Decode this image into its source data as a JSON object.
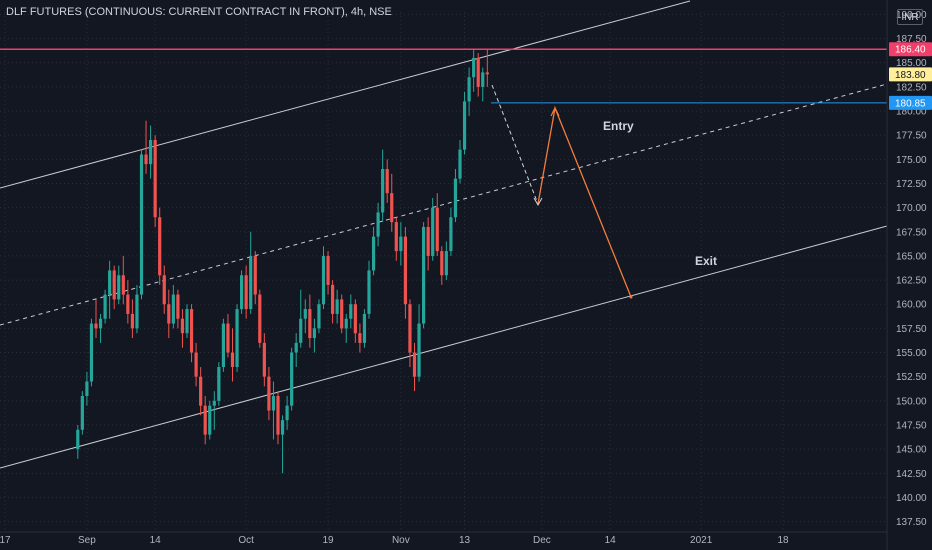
{
  "title": "DLF FUTURES (CONTINUOUS: CURRENT CONTRACT IN FRONT), 4h, NSE",
  "currency": "INR",
  "colors": {
    "background": "#131722",
    "grid": "#2a2e39",
    "axis_text": "#b2b5be",
    "up": "#26a69a",
    "down": "#ef5350",
    "channel": "#c9ccd4",
    "resistance": "#f23e6b",
    "entry_line": "#2196f3",
    "projection": "#f57c3b"
  },
  "annotations": {
    "entry": "Entry",
    "exit": "Exit"
  },
  "chart_data": {
    "type": "candlestick",
    "y_ticks": [
      "137.50",
      "140.00",
      "142.50",
      "145.00",
      "147.50",
      "150.00",
      "152.50",
      "155.00",
      "157.50",
      "160.00",
      "162.50",
      "165.00",
      "167.50",
      "170.00",
      "172.50",
      "175.00",
      "177.50",
      "180.00",
      "182.50",
      "185.00",
      "187.50",
      "190.00"
    ],
    "x_ticks": [
      {
        "label": "17",
        "bar": 0
      },
      {
        "label": "Sep",
        "bar": 18
      },
      {
        "label": "14",
        "bar": 33
      },
      {
        "label": "Oct",
        "bar": 53
      },
      {
        "label": "19",
        "bar": 71
      },
      {
        "label": "Nov",
        "bar": 87
      },
      {
        "label": "13",
        "bar": 101
      },
      {
        "label": "Dec",
        "bar": 118
      },
      {
        "label": "14",
        "bar": 133
      },
      {
        "label": "2021",
        "bar": 153
      },
      {
        "label": "18",
        "bar": 171
      }
    ],
    "ylim": [
      137.5,
      191
    ],
    "bar_count": 185,
    "price_labels": [
      {
        "value": 186.4,
        "label": "186.40",
        "style": "resistance"
      },
      {
        "value": 183.8,
        "label": "183.80",
        "style": "last"
      },
      {
        "value": 180.85,
        "label": "180.85",
        "style": "entry"
      }
    ],
    "candles": [
      [
        145.0,
        147.5,
        144.0,
        147.0
      ],
      [
        147.0,
        151.0,
        146.5,
        150.5
      ],
      [
        150.5,
        153.0,
        149.5,
        152.0
      ],
      [
        152.0,
        158.5,
        151.5,
        158.0
      ],
      [
        158.0,
        160.5,
        156.5,
        157.5
      ],
      [
        157.5,
        159.0,
        156.0,
        158.5
      ],
      [
        158.5,
        161.5,
        158.0,
        161.0
      ],
      [
        161.0,
        164.5,
        158.5,
        163.5
      ],
      [
        163.5,
        164.0,
        159.5,
        160.5
      ],
      [
        160.5,
        164.0,
        160.0,
        163.0
      ],
      [
        163.0,
        165.0,
        160.0,
        161.0
      ],
      [
        161.0,
        162.5,
        158.0,
        159.0
      ],
      [
        159.0,
        160.5,
        156.5,
        157.5
      ],
      [
        157.5,
        162.0,
        157.0,
        161.0
      ],
      [
        161.0,
        176.0,
        160.5,
        175.5
      ],
      [
        175.5,
        179.0,
        173.5,
        174.5
      ],
      [
        174.5,
        178.5,
        173.0,
        177.0
      ],
      [
        177.0,
        177.5,
        168.0,
        169.0
      ],
      [
        169.0,
        170.0,
        162.0,
        163.0
      ],
      [
        163.0,
        164.0,
        159.0,
        160.0
      ],
      [
        160.0,
        161.5,
        156.5,
        158.0
      ],
      [
        158.0,
        162.0,
        157.5,
        161.0
      ],
      [
        161.0,
        161.5,
        157.5,
        158.5
      ],
      [
        158.5,
        159.5,
        155.5,
        157.0
      ],
      [
        157.0,
        160.0,
        156.5,
        159.5
      ],
      [
        159.5,
        160.0,
        154.0,
        155.0
      ],
      [
        155.0,
        156.0,
        151.5,
        152.5
      ],
      [
        152.5,
        153.5,
        148.5,
        149.5
      ],
      [
        149.5,
        150.5,
        145.5,
        146.5
      ],
      [
        146.5,
        150.0,
        146.0,
        149.5
      ],
      [
        149.5,
        151.0,
        147.0,
        150.0
      ],
      [
        150.0,
        154.0,
        149.5,
        153.5
      ],
      [
        153.5,
        158.5,
        153.0,
        158.0
      ],
      [
        158.0,
        159.0,
        154.5,
        155.0
      ],
      [
        155.0,
        157.5,
        152.0,
        153.5
      ],
      [
        153.5,
        160.0,
        153.0,
        159.5
      ],
      [
        159.5,
        163.5,
        159.0,
        163.0
      ],
      [
        163.0,
        164.0,
        158.5,
        159.5
      ],
      [
        159.5,
        167.5,
        159.0,
        165.0
      ],
      [
        165.0,
        165.5,
        160.0,
        161.0
      ],
      [
        161.0,
        161.5,
        155.5,
        156.0
      ],
      [
        156.0,
        157.0,
        151.5,
        152.5
      ],
      [
        152.5,
        153.5,
        148.0,
        149.0
      ],
      [
        149.0,
        152.0,
        146.0,
        150.5
      ],
      [
        150.5,
        151.0,
        145.5,
        146.5
      ],
      [
        146.5,
        148.5,
        142.5,
        148.0
      ],
      [
        148.0,
        150.5,
        147.0,
        149.5
      ],
      [
        149.5,
        155.5,
        149.0,
        155.0
      ],
      [
        155.0,
        157.0,
        153.5,
        156.0
      ],
      [
        156.0,
        161.5,
        155.5,
        158.5
      ],
      [
        158.5,
        160.5,
        157.0,
        159.5
      ],
      [
        159.5,
        161.0,
        155.5,
        156.5
      ],
      [
        156.5,
        158.5,
        155.0,
        157.5
      ],
      [
        157.5,
        160.5,
        157.0,
        160.0
      ],
      [
        160.0,
        166.0,
        159.5,
        165.0
      ],
      [
        165.0,
        165.5,
        161.0,
        162.0
      ],
      [
        162.0,
        162.5,
        158.0,
        159.0
      ],
      [
        159.0,
        161.5,
        158.0,
        160.5
      ],
      [
        160.5,
        161.0,
        157.0,
        157.5
      ],
      [
        157.5,
        159.0,
        156.0,
        158.5
      ],
      [
        158.5,
        161.0,
        157.5,
        160.0
      ],
      [
        160.0,
        160.5,
        156.0,
        157.0
      ],
      [
        157.0,
        158.0,
        155.0,
        156.0
      ],
      [
        156.0,
        159.5,
        155.5,
        159.0
      ],
      [
        159.0,
        164.5,
        158.5,
        163.5
      ],
      [
        163.5,
        168.0,
        163.0,
        167.0
      ],
      [
        167.0,
        170.5,
        166.0,
        169.5
      ],
      [
        169.5,
        176.0,
        168.5,
        174.0
      ],
      [
        174.0,
        175.0,
        170.5,
        171.5
      ],
      [
        171.5,
        173.5,
        167.5,
        168.5
      ],
      [
        168.5,
        169.0,
        164.5,
        165.5
      ],
      [
        165.5,
        168.5,
        164.0,
        167.0
      ],
      [
        167.0,
        168.0,
        158.5,
        160.0
      ],
      [
        160.0,
        160.5,
        153.5,
        155.0
      ],
      [
        155.0,
        156.0,
        151.0,
        152.5
      ],
      [
        152.5,
        160.0,
        152.0,
        158.0
      ],
      [
        158.0,
        168.5,
        157.5,
        168.0
      ],
      [
        168.0,
        169.0,
        163.5,
        165.0
      ],
      [
        165.0,
        171.0,
        164.5,
        170.0
      ],
      [
        170.0,
        171.5,
        165.0,
        165.5
      ],
      [
        165.5,
        166.0,
        162.0,
        163.0
      ],
      [
        163.0,
        166.5,
        162.5,
        165.5
      ],
      [
        165.5,
        170.0,
        165.0,
        169.0
      ],
      [
        169.0,
        174.0,
        168.5,
        173.0
      ],
      [
        173.0,
        177.0,
        172.5,
        176.0
      ],
      [
        176.0,
        182.0,
        175.5,
        181.0
      ],
      [
        181.0,
        184.5,
        179.5,
        183.5
      ],
      [
        183.5,
        186.4,
        182.0,
        185.5
      ],
      [
        185.5,
        186.0,
        181.5,
        182.5
      ],
      [
        182.5,
        184.5,
        181.0,
        184.0
      ],
      [
        184.0,
        186.4,
        182.5,
        183.8
      ]
    ]
  }
}
